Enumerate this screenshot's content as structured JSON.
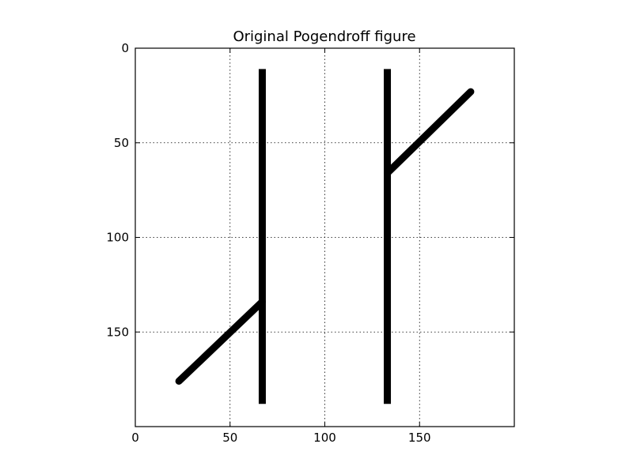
{
  "chart_data": {
    "type": "image",
    "title": "Original Pogendroff figure",
    "xlabel": "",
    "ylabel": "",
    "xlim": [
      0,
      200
    ],
    "ylim": [
      200,
      0
    ],
    "y_inverted": true,
    "grid": true,
    "x_ticks": [
      0,
      50,
      100,
      150
    ],
    "y_ticks": [
      0,
      50,
      100,
      150
    ],
    "line_color": "#000000",
    "segments": [
      {
        "name": "left-vertical-bar",
        "x1": 67,
        "y1": 11,
        "x2": 67,
        "y2": 188
      },
      {
        "name": "right-vertical-bar",
        "x1": 133,
        "y1": 11,
        "x2": 133,
        "y2": 188
      },
      {
        "name": "lower-left-oblique",
        "x1": 23,
        "y1": 176,
        "x2": 67,
        "y2": 134
      },
      {
        "name": "upper-right-oblique",
        "x1": 133,
        "y1": 66,
        "x2": 177,
        "y2": 23
      }
    ]
  }
}
